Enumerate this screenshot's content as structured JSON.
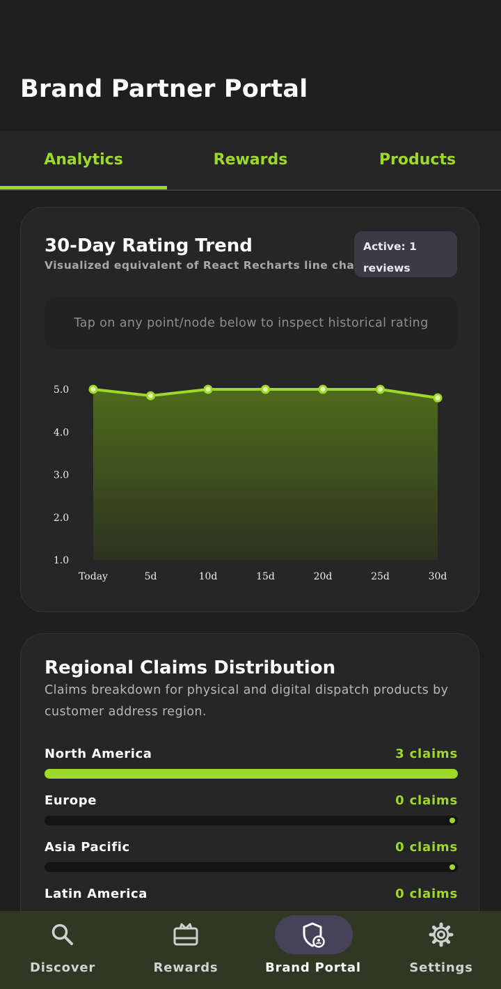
{
  "header": {
    "title": "Brand Partner Portal"
  },
  "tabs": [
    {
      "label": "Analytics",
      "active": true
    },
    {
      "label": "Rewards",
      "active": false
    },
    {
      "label": "Products",
      "active": false
    }
  ],
  "rating_card": {
    "title": "30-Day Rating Trend",
    "subtitle": "Visualized equivalent of React Recharts line chart",
    "badge_line1": "Active: 1",
    "badge_line2": "reviews",
    "hint": "Tap on any point/node below to inspect historical rating"
  },
  "chart_data": {
    "type": "area",
    "categories": [
      "Today",
      "5d",
      "10d",
      "15d",
      "20d",
      "25d",
      "30d"
    ],
    "values": [
      5.0,
      4.85,
      5.0,
      5.0,
      5.0,
      5.0,
      4.8
    ],
    "ylim": [
      1.0,
      5.0
    ],
    "yticks": [
      "5.0",
      "4.0",
      "3.0",
      "2.0",
      "1.0"
    ],
    "line_color": "#9ed92a",
    "fill_color_top": "#4f6b1c",
    "fill_color_bottom": "#2c3320"
  },
  "regional_card": {
    "title": "Regional Claims Distribution",
    "description": "Claims breakdown for physical and digital dispatch products by customer address region.",
    "regions": [
      {
        "name": "North America",
        "count": "3 claims",
        "share": 1.0
      },
      {
        "name": "Europe",
        "count": "0 claims",
        "share": 0
      },
      {
        "name": "Asia Pacific",
        "count": "0 claims",
        "share": 0
      },
      {
        "name": "Latin America",
        "count": "0 claims",
        "share": 0
      }
    ]
  },
  "bottom_nav": [
    {
      "label": "Discover",
      "icon": "search-icon",
      "active": false
    },
    {
      "label": "Rewards",
      "icon": "gift-card-icon",
      "active": false
    },
    {
      "label": "Brand Portal",
      "icon": "shield-user-icon",
      "active": true
    },
    {
      "label": "Settings",
      "icon": "gear-icon",
      "active": false
    }
  ],
  "colors": {
    "accent": "#9ed92a",
    "background": "#1f1f1f",
    "card": "#262626",
    "nav_background": "#2e3822",
    "active_pill": "#46425a"
  }
}
